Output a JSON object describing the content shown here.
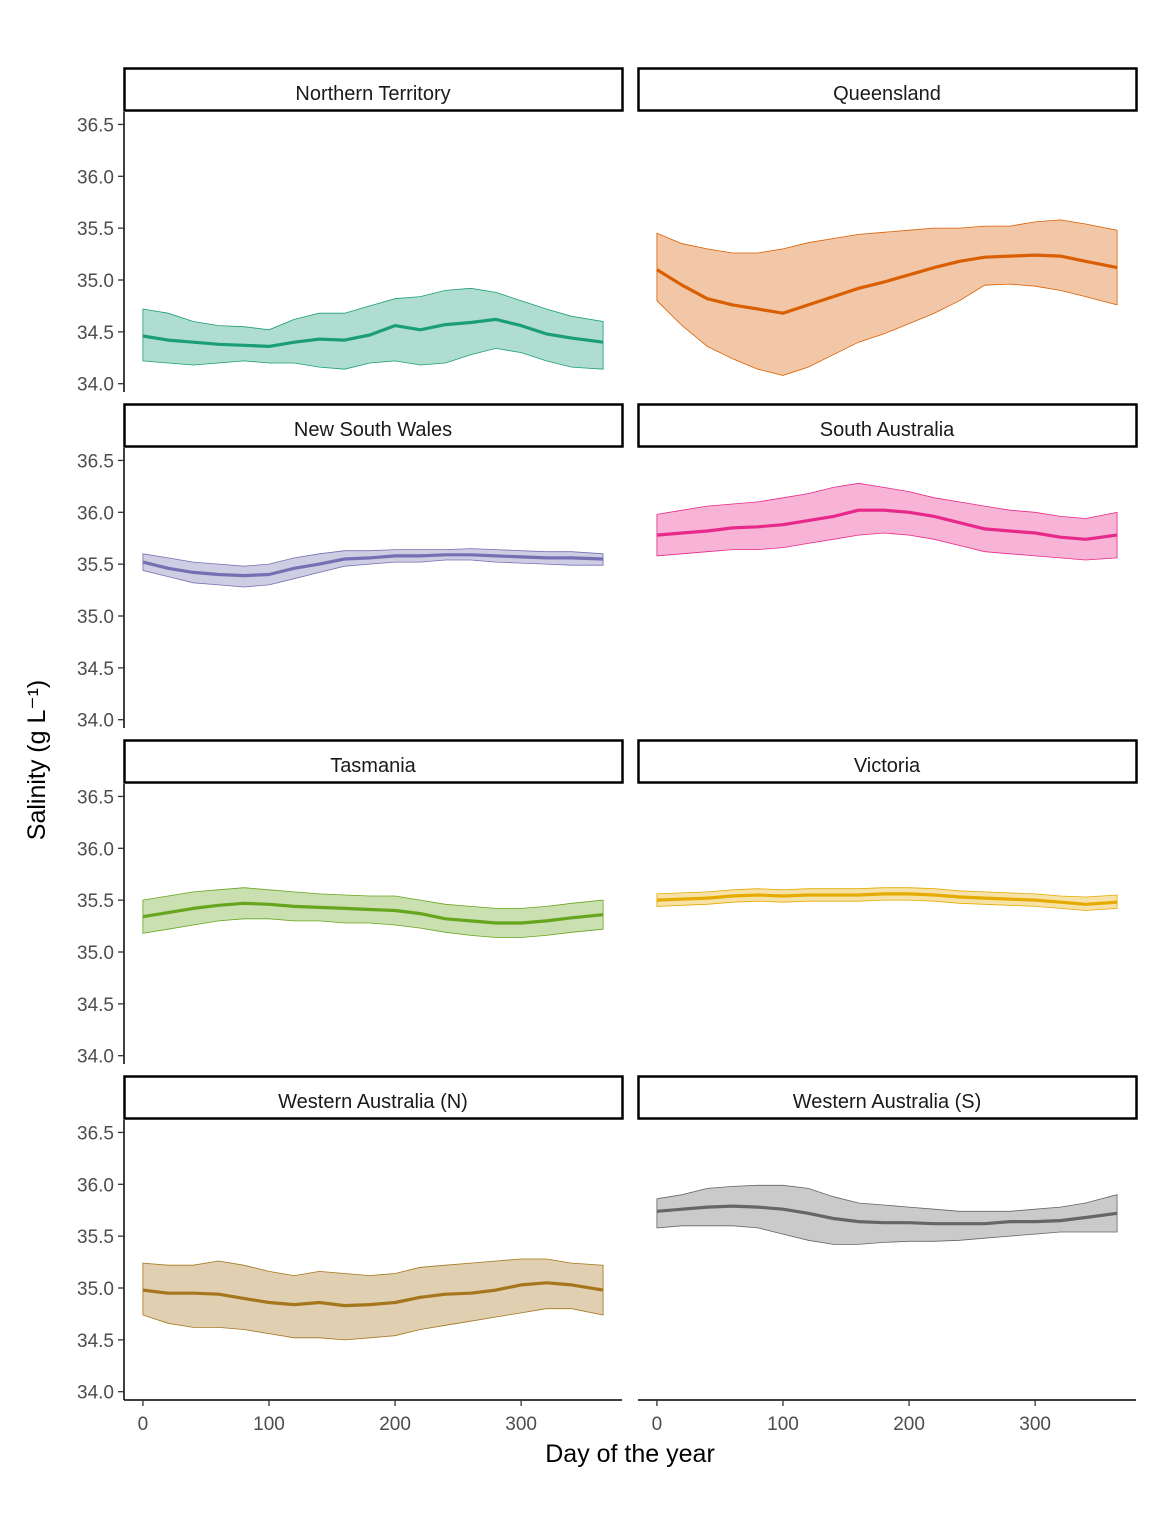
{
  "chart_data": {
    "type": "area",
    "xlabel": "Day of the year",
    "ylabel": "Salinity (g L⁻¹)",
    "xlim": [
      -15,
      380
    ],
    "ylim": [
      33.92,
      36.62
    ],
    "x_ticks": [
      0,
      100,
      200,
      300
    ],
    "y_ticks": [
      34.0,
      34.5,
      35.0,
      35.5,
      36.0,
      36.5
    ],
    "x_tick_labels": [
      "0",
      "100",
      "200",
      "300"
    ],
    "y_tick_labels": [
      "34.0",
      "34.5",
      "35.0",
      "35.5",
      "36.0",
      "36.5"
    ],
    "layout": "4 rows x 2 columns facets, shared axes",
    "x": [
      0,
      20,
      40,
      60,
      80,
      100,
      120,
      140,
      160,
      180,
      200,
      220,
      240,
      260,
      280,
      300,
      320,
      340,
      365
    ],
    "panels": [
      {
        "title": "Northern Territory",
        "color": "#1b9e77",
        "mean": [
          34.46,
          34.42,
          34.4,
          34.38,
          34.37,
          34.36,
          34.4,
          34.43,
          34.42,
          34.47,
          34.56,
          34.52,
          34.57,
          34.59,
          34.62,
          34.56,
          34.48,
          34.44,
          34.4
        ],
        "upper": [
          34.72,
          34.68,
          34.6,
          34.56,
          34.55,
          34.52,
          34.62,
          34.68,
          34.68,
          34.75,
          34.82,
          34.84,
          34.9,
          34.92,
          34.88,
          34.8,
          34.72,
          34.65,
          34.6
        ],
        "lower": [
          34.22,
          34.2,
          34.18,
          34.2,
          34.22,
          34.2,
          34.2,
          34.16,
          34.14,
          34.2,
          34.22,
          34.18,
          34.2,
          34.28,
          34.34,
          34.3,
          34.22,
          34.16,
          34.14
        ]
      },
      {
        "title": "Queensland",
        "color": "#d95f02",
        "mean": [
          35.1,
          34.95,
          34.82,
          34.76,
          34.72,
          34.68,
          34.76,
          34.84,
          34.92,
          34.98,
          35.05,
          35.12,
          35.18,
          35.22,
          35.23,
          35.24,
          35.23,
          35.18,
          35.12
        ],
        "upper": [
          35.45,
          35.35,
          35.3,
          35.26,
          35.26,
          35.3,
          35.36,
          35.4,
          35.44,
          35.46,
          35.48,
          35.5,
          35.5,
          35.52,
          35.52,
          35.56,
          35.58,
          35.54,
          35.48
        ],
        "lower": [
          34.8,
          34.56,
          34.36,
          34.24,
          34.14,
          34.08,
          34.16,
          34.28,
          34.4,
          34.48,
          34.58,
          34.68,
          34.8,
          34.95,
          34.96,
          34.94,
          34.9,
          34.84,
          34.76
        ]
      },
      {
        "title": "New South Wales",
        "color": "#7570b3",
        "mean": [
          35.52,
          35.46,
          35.42,
          35.4,
          35.39,
          35.4,
          35.46,
          35.5,
          35.55,
          35.56,
          35.58,
          35.58,
          35.59,
          35.59,
          35.58,
          35.57,
          35.56,
          35.56,
          35.55
        ],
        "upper": [
          35.6,
          35.56,
          35.52,
          35.5,
          35.48,
          35.5,
          35.56,
          35.6,
          35.63,
          35.63,
          35.64,
          35.64,
          35.64,
          35.65,
          35.64,
          35.63,
          35.62,
          35.62,
          35.6
        ],
        "lower": [
          35.44,
          35.38,
          35.32,
          35.3,
          35.28,
          35.3,
          35.36,
          35.42,
          35.48,
          35.5,
          35.52,
          35.52,
          35.54,
          35.54,
          35.52,
          35.51,
          35.5,
          35.49,
          35.49
        ]
      },
      {
        "title": "South Australia",
        "color": "#e7298a",
        "mean": [
          35.78,
          35.8,
          35.82,
          35.85,
          35.86,
          35.88,
          35.92,
          35.96,
          36.02,
          36.02,
          36.0,
          35.96,
          35.9,
          35.84,
          35.82,
          35.8,
          35.76,
          35.74,
          35.78
        ],
        "upper": [
          35.98,
          36.02,
          36.06,
          36.08,
          36.1,
          36.14,
          36.18,
          36.24,
          36.28,
          36.24,
          36.2,
          36.14,
          36.1,
          36.06,
          36.02,
          36.0,
          35.96,
          35.94,
          36.0
        ],
        "lower": [
          35.58,
          35.6,
          35.62,
          35.64,
          35.64,
          35.66,
          35.7,
          35.74,
          35.78,
          35.8,
          35.78,
          35.74,
          35.68,
          35.62,
          35.6,
          35.58,
          35.56,
          35.54,
          35.56
        ]
      },
      {
        "title": "Tasmania",
        "color": "#66a61e",
        "mean": [
          35.34,
          35.38,
          35.42,
          35.45,
          35.47,
          35.46,
          35.44,
          35.43,
          35.42,
          35.41,
          35.4,
          35.37,
          35.32,
          35.3,
          35.28,
          35.28,
          35.3,
          35.33,
          35.36
        ],
        "upper": [
          35.5,
          35.54,
          35.58,
          35.6,
          35.62,
          35.6,
          35.58,
          35.56,
          35.55,
          35.54,
          35.54,
          35.5,
          35.46,
          35.44,
          35.42,
          35.42,
          35.44,
          35.47,
          35.5
        ],
        "lower": [
          35.18,
          35.22,
          35.26,
          35.3,
          35.32,
          35.32,
          35.3,
          35.3,
          35.28,
          35.28,
          35.26,
          35.23,
          35.19,
          35.16,
          35.14,
          35.14,
          35.16,
          35.19,
          35.22
        ]
      },
      {
        "title": "Victoria",
        "color": "#e6ab02",
        "mean": [
          35.5,
          35.51,
          35.52,
          35.54,
          35.55,
          35.54,
          35.55,
          35.55,
          35.55,
          35.56,
          35.56,
          35.55,
          35.53,
          35.52,
          35.51,
          35.5,
          35.48,
          35.46,
          35.48
        ],
        "upper": [
          35.56,
          35.57,
          35.58,
          35.6,
          35.61,
          35.6,
          35.61,
          35.61,
          35.61,
          35.62,
          35.62,
          35.61,
          35.59,
          35.58,
          35.57,
          35.56,
          35.54,
          35.53,
          35.55
        ],
        "lower": [
          35.44,
          35.45,
          35.46,
          35.48,
          35.49,
          35.48,
          35.49,
          35.49,
          35.49,
          35.5,
          35.5,
          35.49,
          35.47,
          35.46,
          35.45,
          35.44,
          35.42,
          35.4,
          35.42
        ]
      },
      {
        "title": "Western Australia (N)",
        "color": "#a6761d",
        "mean": [
          34.98,
          34.95,
          34.95,
          34.94,
          34.9,
          34.86,
          34.84,
          34.86,
          34.83,
          34.84,
          34.86,
          34.91,
          34.94,
          34.95,
          34.98,
          35.03,
          35.05,
          35.03,
          34.98
        ],
        "upper": [
          35.24,
          35.22,
          35.22,
          35.26,
          35.22,
          35.16,
          35.12,
          35.16,
          35.14,
          35.12,
          35.14,
          35.2,
          35.22,
          35.24,
          35.26,
          35.28,
          35.28,
          35.24,
          35.22
        ],
        "lower": [
          34.74,
          34.66,
          34.62,
          34.62,
          34.6,
          34.56,
          34.52,
          34.52,
          34.5,
          34.52,
          34.54,
          34.6,
          34.64,
          34.68,
          34.72,
          34.76,
          34.8,
          34.8,
          34.74
        ]
      },
      {
        "title": "Western Australia (S)",
        "color": "#666666",
        "mean": [
          35.74,
          35.76,
          35.78,
          35.79,
          35.78,
          35.76,
          35.72,
          35.67,
          35.64,
          35.63,
          35.63,
          35.62,
          35.62,
          35.62,
          35.64,
          35.64,
          35.65,
          35.68,
          35.72
        ],
        "upper": [
          35.86,
          35.9,
          35.96,
          35.98,
          35.99,
          35.99,
          35.96,
          35.88,
          35.82,
          35.8,
          35.78,
          35.76,
          35.74,
          35.74,
          35.74,
          35.76,
          35.78,
          35.82,
          35.9
        ],
        "lower": [
          35.58,
          35.6,
          35.6,
          35.6,
          35.58,
          35.52,
          35.46,
          35.42,
          35.42,
          35.44,
          35.45,
          35.45,
          35.46,
          35.48,
          35.5,
          35.52,
          35.54,
          35.54,
          35.54
        ]
      }
    ]
  }
}
